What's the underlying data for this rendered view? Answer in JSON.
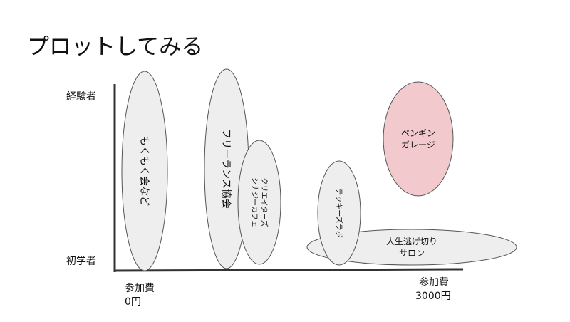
{
  "slide": {
    "title": "プロットしてみる"
  },
  "axes": {
    "y_top_label": "経験者",
    "y_bottom_label": "初学者",
    "x_left_label_line1": "参加費",
    "x_left_label_line2": "0円",
    "x_right_label_line1": "参加費",
    "x_right_label_line2": "3000円"
  },
  "communities": [
    {
      "id": "mokumoku",
      "label_lines": [
        "もくもく会など"
      ],
      "fill": "#eeeeee"
    },
    {
      "id": "freelance",
      "label_lines": [
        "フリーランス協会"
      ],
      "fill": "#eeeeee"
    },
    {
      "id": "creators",
      "label_lines": [
        "クリエイターズ",
        "シナジーカフェ"
      ],
      "fill": "#eeeeee"
    },
    {
      "id": "techkids",
      "label_lines": [
        "テッキーズラボ"
      ],
      "fill": "#eeeeee"
    },
    {
      "id": "jinsei",
      "label_lines": [
        "人生逃げ切り",
        "サロン"
      ],
      "fill": "#eeeeee"
    },
    {
      "id": "penguin",
      "label_lines": [
        "ペンギン",
        "ガレージ"
      ],
      "fill": "#f2c9cd"
    }
  ],
  "colors": {
    "axis": "#333333",
    "shape_stroke": "#555555"
  }
}
